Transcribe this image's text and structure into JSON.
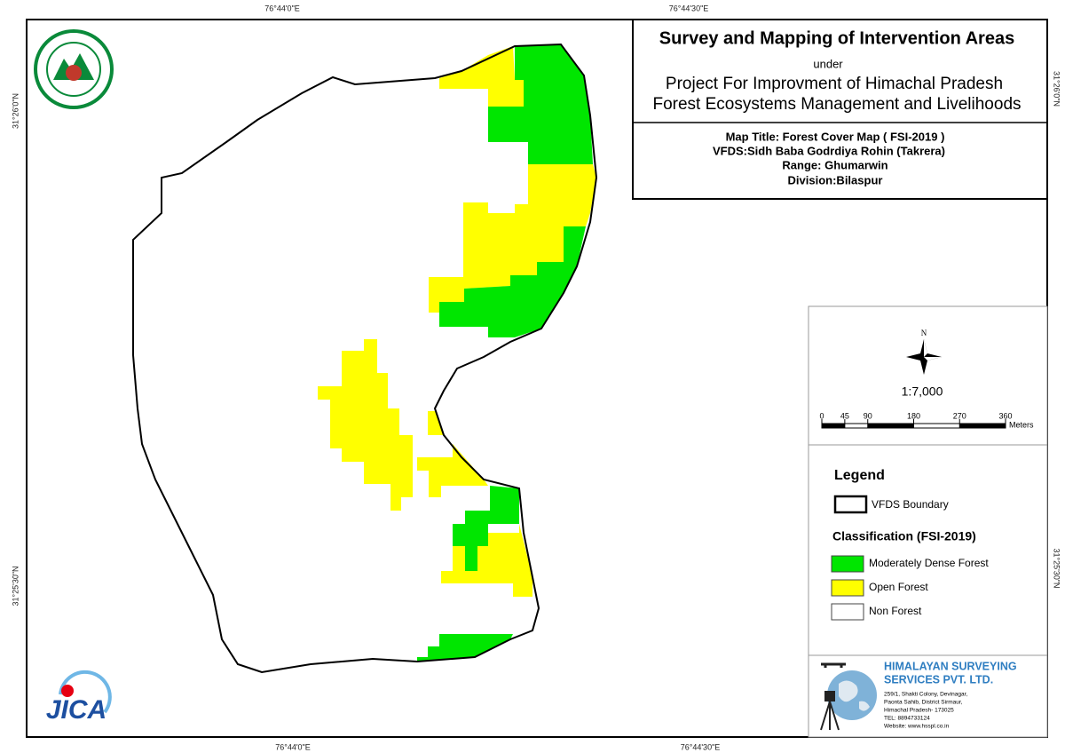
{
  "graticule": {
    "top": [
      "76°44'0\"E",
      "76°44'30\"E"
    ],
    "bottom": [
      "76°44'0\"E",
      "76°44'30\"E"
    ],
    "left": [
      "31°26'0\"N",
      "31°25'30\"N"
    ],
    "right": [
      "31°26'0\"N",
      "31°25'30\"N"
    ]
  },
  "title_block": {
    "title": "Survey and Mapping of Intervention Areas",
    "subtitle": "under",
    "project": [
      "Project For Improvment of Himachal Pradesh",
      "Forest Ecosystems Management and Livelihoods"
    ]
  },
  "map_info": [
    "Map Title: Forest Cover Map ( FSI-2019 )",
    "VFDS:Sidh Baba Godrdiya Rohin (Takrera)",
    "Range: Ghumarwin",
    "Division:Bilaspur"
  ],
  "north": "N",
  "scale": {
    "ratio": "1:7,000",
    "ticks": [
      0,
      45,
      90,
      180,
      270,
      360
    ],
    "unit": "Meters"
  },
  "legend": {
    "title": "Legend",
    "boundary": "VFDS Boundary",
    "classification_title": "Classification (FSI-2019)",
    "items": [
      {
        "label": "Moderately Dense Forest",
        "color": "#00e600"
      },
      {
        "label": "Open Forest",
        "color": "#ffff00"
      },
      {
        "label": "Non Forest",
        "color": "#ffffff"
      }
    ]
  },
  "company": {
    "name": [
      "HIMALAYAN SURVEYING",
      "SERVICES PVT. LTD."
    ],
    "address": [
      "259/1, Shakti Colony, Devinagar,",
      "Paonta Sahib, District Sirmaur,",
      "Himachal Pradesh- 173025",
      "TEL: 8894733124",
      "Website: www.hsspl.co.in"
    ]
  },
  "logos": {
    "jica": "JICA"
  }
}
